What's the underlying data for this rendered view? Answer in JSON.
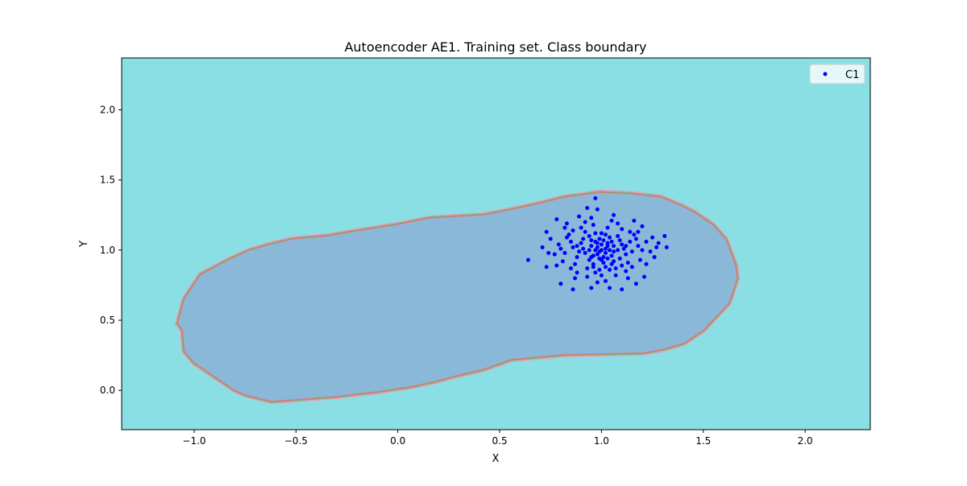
{
  "chart_data": {
    "type": "scatter",
    "title": "Autoencoder AE1. Training set. Class boundary",
    "xlabel": "X",
    "ylabel": "Y",
    "xlim": [
      -1.356,
      2.32
    ],
    "ylim": [
      -0.28,
      2.37
    ],
    "xticks": [
      -1.0,
      -0.5,
      0.0,
      0.5,
      1.0,
      1.5,
      2.0
    ],
    "xtick_labels": [
      "−1.0",
      "−0.5",
      "0.0",
      "0.5",
      "1.0",
      "1.5",
      "2.0"
    ],
    "yticks": [
      0.0,
      0.5,
      1.0,
      1.5,
      2.0
    ],
    "ytick_labels": [
      "0.0",
      "0.5",
      "1.0",
      "1.5",
      "2.0"
    ],
    "grid": false,
    "legend": {
      "placement": "top-right",
      "entries": [
        "C1"
      ]
    },
    "colors": {
      "outside": "#8adfe5",
      "inside": "#8ab8d8",
      "contour_a": "#d97b7b",
      "contour_b": "#6fb86f",
      "contour_c": "#e2a0bf",
      "points": "#0000ff"
    },
    "boundary": [
      [
        -1.079,
        0.477
      ],
      [
        -1.047,
        0.649
      ],
      [
        -1.016,
        0.718
      ],
      [
        -0.968,
        0.822
      ],
      [
        -0.834,
        0.925
      ],
      [
        -0.731,
        0.994
      ],
      [
        -0.621,
        1.04
      ],
      [
        -0.518,
        1.075
      ],
      [
        -0.344,
        1.098
      ],
      [
        -0.154,
        1.144
      ],
      [
        -0.004,
        1.178
      ],
      [
        0.154,
        1.224
      ],
      [
        0.423,
        1.247
      ],
      [
        0.581,
        1.293
      ],
      [
        0.692,
        1.328
      ],
      [
        0.818,
        1.374
      ],
      [
        0.992,
        1.408
      ],
      [
        1.15,
        1.397
      ],
      [
        1.292,
        1.374
      ],
      [
        1.387,
        1.316
      ],
      [
        1.451,
        1.27
      ],
      [
        1.545,
        1.178
      ],
      [
        1.609,
        1.075
      ],
      [
        1.656,
        0.891
      ],
      [
        1.664,
        0.799
      ],
      [
        1.625,
        0.626
      ],
      [
        1.498,
        0.431
      ],
      [
        1.403,
        0.339
      ],
      [
        1.292,
        0.293
      ],
      [
        1.198,
        0.27
      ],
      [
        0.818,
        0.259
      ],
      [
        0.557,
        0.224
      ],
      [
        0.423,
        0.155
      ],
      [
        0.289,
        0.109
      ],
      [
        0.17,
        0.063
      ],
      [
        0.059,
        0.029
      ],
      [
        -0.107,
        -0.006
      ],
      [
        -0.304,
        -0.04
      ],
      [
        -0.621,
        -0.075
      ],
      [
        -0.747,
        -0.029
      ],
      [
        -0.802,
        0.006
      ],
      [
        -1.0,
        0.201
      ],
      [
        -1.047,
        0.282
      ],
      [
        -1.055,
        0.431
      ]
    ],
    "series": [
      {
        "name": "C1",
        "points": [
          [
            0.64,
            0.93
          ],
          [
            0.97,
            1.37
          ],
          [
            1.31,
            1.1
          ],
          [
            1.32,
            1.02
          ],
          [
            1.1,
            0.72
          ],
          [
            0.93,
            1.3
          ],
          [
            0.78,
            1.22
          ],
          [
            0.73,
            1.13
          ],
          [
            0.71,
            1.02
          ],
          [
            0.73,
            0.88
          ],
          [
            0.8,
            0.76
          ],
          [
            0.86,
            0.72
          ],
          [
            0.95,
            0.73
          ],
          [
            1.04,
            0.73
          ],
          [
            1.17,
            0.76
          ],
          [
            1.21,
            0.81
          ],
          [
            1.26,
            0.95
          ],
          [
            1.28,
            1.05
          ],
          [
            1.2,
            1.17
          ],
          [
            1.16,
            1.21
          ],
          [
            1.06,
            1.25
          ],
          [
            0.98,
            1.29
          ],
          [
            0.89,
            1.24
          ],
          [
            0.83,
            1.19
          ],
          [
            1.0,
            1.0
          ],
          [
            0.98,
            0.97
          ],
          [
            1.02,
            1.01
          ],
          [
            0.95,
            1.03
          ],
          [
            1.05,
            0.96
          ],
          [
            0.99,
            0.94
          ],
          [
            1.03,
            1.05
          ],
          [
            0.97,
            1.06
          ],
          [
            1.08,
            1.0
          ],
          [
            0.92,
            0.98
          ],
          [
            1.01,
            0.91
          ],
          [
            0.96,
            0.9
          ],
          [
            1.06,
            0.92
          ],
          [
            1.1,
            1.04
          ],
          [
            0.9,
            1.05
          ],
          [
            0.94,
            1.1
          ],
          [
            1.04,
            1.09
          ],
          [
            1.12,
            0.97
          ],
          [
            0.88,
            0.95
          ],
          [
            1.0,
            1.12
          ],
          [
            0.99,
            0.86
          ],
          [
            1.07,
            0.87
          ],
          [
            0.93,
            0.87
          ],
          [
            1.14,
            1.06
          ],
          [
            0.86,
            1.02
          ],
          [
            1.02,
            0.98
          ],
          [
            0.97,
            1.0
          ],
          [
            1.0,
            1.04
          ],
          [
            1.04,
            1.0
          ],
          [
            0.96,
            0.96
          ],
          [
            1.03,
            0.94
          ],
          [
            0.99,
            1.08
          ],
          [
            1.06,
            1.03
          ],
          [
            0.91,
            1.01
          ],
          [
            1.09,
            0.94
          ],
          [
            0.94,
            0.93
          ],
          [
            1.01,
            1.07
          ],
          [
            0.98,
            1.02
          ],
          [
            1.05,
            1.06
          ],
          [
            0.95,
            1.07
          ],
          [
            1.11,
            1.01
          ],
          [
            0.89,
            0.99
          ],
          [
            1.02,
            0.88
          ],
          [
            0.97,
            0.84
          ],
          [
            1.08,
            1.1
          ],
          [
            0.92,
            1.13
          ],
          [
            1.15,
            0.99
          ],
          [
            0.85,
            1.06
          ],
          [
            1.13,
            0.91
          ],
          [
            0.87,
            0.9
          ],
          [
            1.0,
            0.82
          ],
          [
            1.18,
            1.03
          ],
          [
            0.82,
            0.98
          ],
          [
            1.16,
            1.11
          ],
          [
            0.84,
            1.11
          ],
          [
            1.19,
            0.93
          ],
          [
            0.81,
            0.92
          ],
          [
            1.1,
            1.15
          ],
          [
            0.9,
            1.16
          ],
          [
            1.07,
            0.82
          ],
          [
            0.93,
            0.81
          ],
          [
            1.22,
            1.06
          ],
          [
            0.79,
            1.04
          ],
          [
            1.24,
            0.99
          ],
          [
            0.77,
            0.97
          ],
          [
            1.12,
            0.85
          ],
          [
            0.88,
            0.84
          ],
          [
            1.03,
            1.16
          ],
          [
            0.96,
            1.18
          ],
          [
            1.14,
            1.13
          ],
          [
            0.86,
            1.14
          ],
          [
            1.01,
            0.95
          ],
          [
            0.99,
            0.99
          ],
          [
            1.03,
            1.03
          ],
          [
            0.98,
            1.05
          ],
          [
            1.06,
            0.99
          ],
          [
            0.94,
            1.0
          ],
          [
            1.0,
            0.93
          ],
          [
            1.05,
            0.9
          ],
          [
            0.95,
            0.95
          ],
          [
            1.09,
            1.07
          ],
          [
            0.91,
            1.08
          ],
          [
            1.02,
            1.11
          ],
          [
            0.97,
            1.12
          ],
          [
            1.12,
            1.03
          ],
          [
            0.88,
            1.03
          ],
          [
            1.04,
            0.86
          ],
          [
            0.96,
            0.88
          ],
          [
            1.17,
            1.08
          ],
          [
            0.83,
            1.09
          ],
          [
            1.2,
            1.0
          ],
          [
            0.8,
            1.01
          ],
          [
            1.15,
            0.88
          ],
          [
            0.85,
            0.87
          ],
          [
            1.08,
            1.19
          ],
          [
            0.92,
            1.2
          ],
          [
            1.25,
            1.09
          ],
          [
            0.75,
            1.08
          ],
          [
            1.13,
            0.8
          ],
          [
            0.87,
            0.8
          ],
          [
            1.02,
            0.78
          ],
          [
            0.98,
            0.77
          ],
          [
            1.22,
            0.9
          ],
          [
            0.78,
            0.89
          ],
          [
            1.18,
            1.13
          ],
          [
            0.82,
            1.16
          ],
          [
            1.05,
            1.21
          ],
          [
            0.95,
            1.23
          ],
          [
            1.27,
            1.02
          ],
          [
            0.74,
            0.98
          ],
          [
            1.1,
            0.89
          ]
        ]
      }
    ]
  }
}
